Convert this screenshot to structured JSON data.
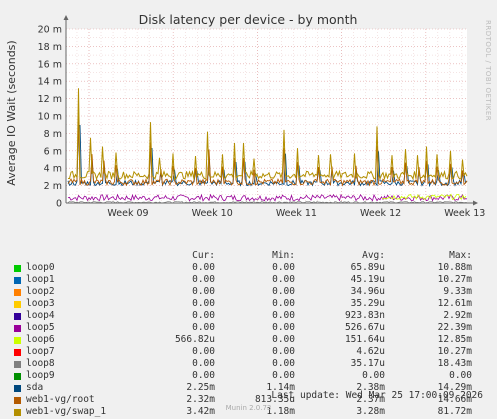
{
  "chart_data": {
    "type": "line",
    "title": "Disk latency per device - by month",
    "ylabel": "Average IO Wait (seconds)",
    "xlabel": "",
    "ylim": [
      0,
      0.02
    ],
    "y_ticks": [
      {
        "value": 0,
        "label": "0"
      },
      {
        "value": 0.002,
        "label": "2 m"
      },
      {
        "value": 0.004,
        "label": "4 m"
      },
      {
        "value": 0.006,
        "label": "6 m"
      },
      {
        "value": 0.008,
        "label": "8 m"
      },
      {
        "value": 0.01,
        "label": "10 m"
      },
      {
        "value": 0.012,
        "label": "12 m"
      },
      {
        "value": 0.014,
        "label": "14 m"
      },
      {
        "value": 0.016,
        "label": "16 m"
      },
      {
        "value": 0.018,
        "label": "18 m"
      },
      {
        "value": 0.02,
        "label": "20 m"
      }
    ],
    "x_ticks": [
      "Week 09",
      "Week 10",
      "Week 11",
      "Week 12",
      "Week 13"
    ],
    "grid": true,
    "columns": [
      "Cur:",
      "Min:",
      "Avg:",
      "Max:"
    ],
    "series": [
      {
        "name": "loop0",
        "color": "#00cc00",
        "cur": "0.00",
        "min": "0.00",
        "avg": "65.89u",
        "max": "10.88m"
      },
      {
        "name": "loop1",
        "color": "#0066b3",
        "cur": "0.00",
        "min": "0.00",
        "avg": "45.19u",
        "max": "10.27m"
      },
      {
        "name": "loop2",
        "color": "#ff8000",
        "cur": "0.00",
        "min": "0.00",
        "avg": "34.96u",
        "max": "9.33m"
      },
      {
        "name": "loop3",
        "color": "#ffcc00",
        "cur": "0.00",
        "min": "0.00",
        "avg": "35.29u",
        "max": "12.61m"
      },
      {
        "name": "loop4",
        "color": "#330099",
        "cur": "0.00",
        "min": "0.00",
        "avg": "923.83n",
        "max": "2.92m"
      },
      {
        "name": "loop5",
        "color": "#990099",
        "cur": "0.00",
        "min": "0.00",
        "avg": "526.67u",
        "max": "22.39m"
      },
      {
        "name": "loop6",
        "color": "#ccff00",
        "cur": "566.82u",
        "min": "0.00",
        "avg": "151.64u",
        "max": "12.85m"
      },
      {
        "name": "loop7",
        "color": "#ff0000",
        "cur": "0.00",
        "min": "0.00",
        "avg": "4.62u",
        "max": "10.27m"
      },
      {
        "name": "loop8",
        "color": "#808080",
        "cur": "0.00",
        "min": "0.00",
        "avg": "35.17u",
        "max": "18.43m"
      },
      {
        "name": "loop9",
        "color": "#008f00",
        "cur": "0.00",
        "min": "0.00",
        "avg": "0.00",
        "max": "0.00"
      },
      {
        "name": "sda",
        "color": "#00487d",
        "cur": "2.25m",
        "min": "1.14m",
        "avg": "2.38m",
        "max": "14.29m"
      },
      {
        "name": "web1-vg/root",
        "color": "#b35a00",
        "cur": "2.32m",
        "min": "813.35u",
        "avg": "2.37m",
        "max": "14.66m"
      },
      {
        "name": "web1-vg/swap_1",
        "color": "#b38f00",
        "cur": "3.42m",
        "min": "1.18m",
        "avg": "3.28m",
        "max": "81.72m"
      }
    ]
  },
  "side_label": "RRDTOOL / TOBI OETIKER",
  "last_update": "Last update: Wed Mar 25 17:00:09 2026",
  "munin_version": "Munin 2.0.73"
}
